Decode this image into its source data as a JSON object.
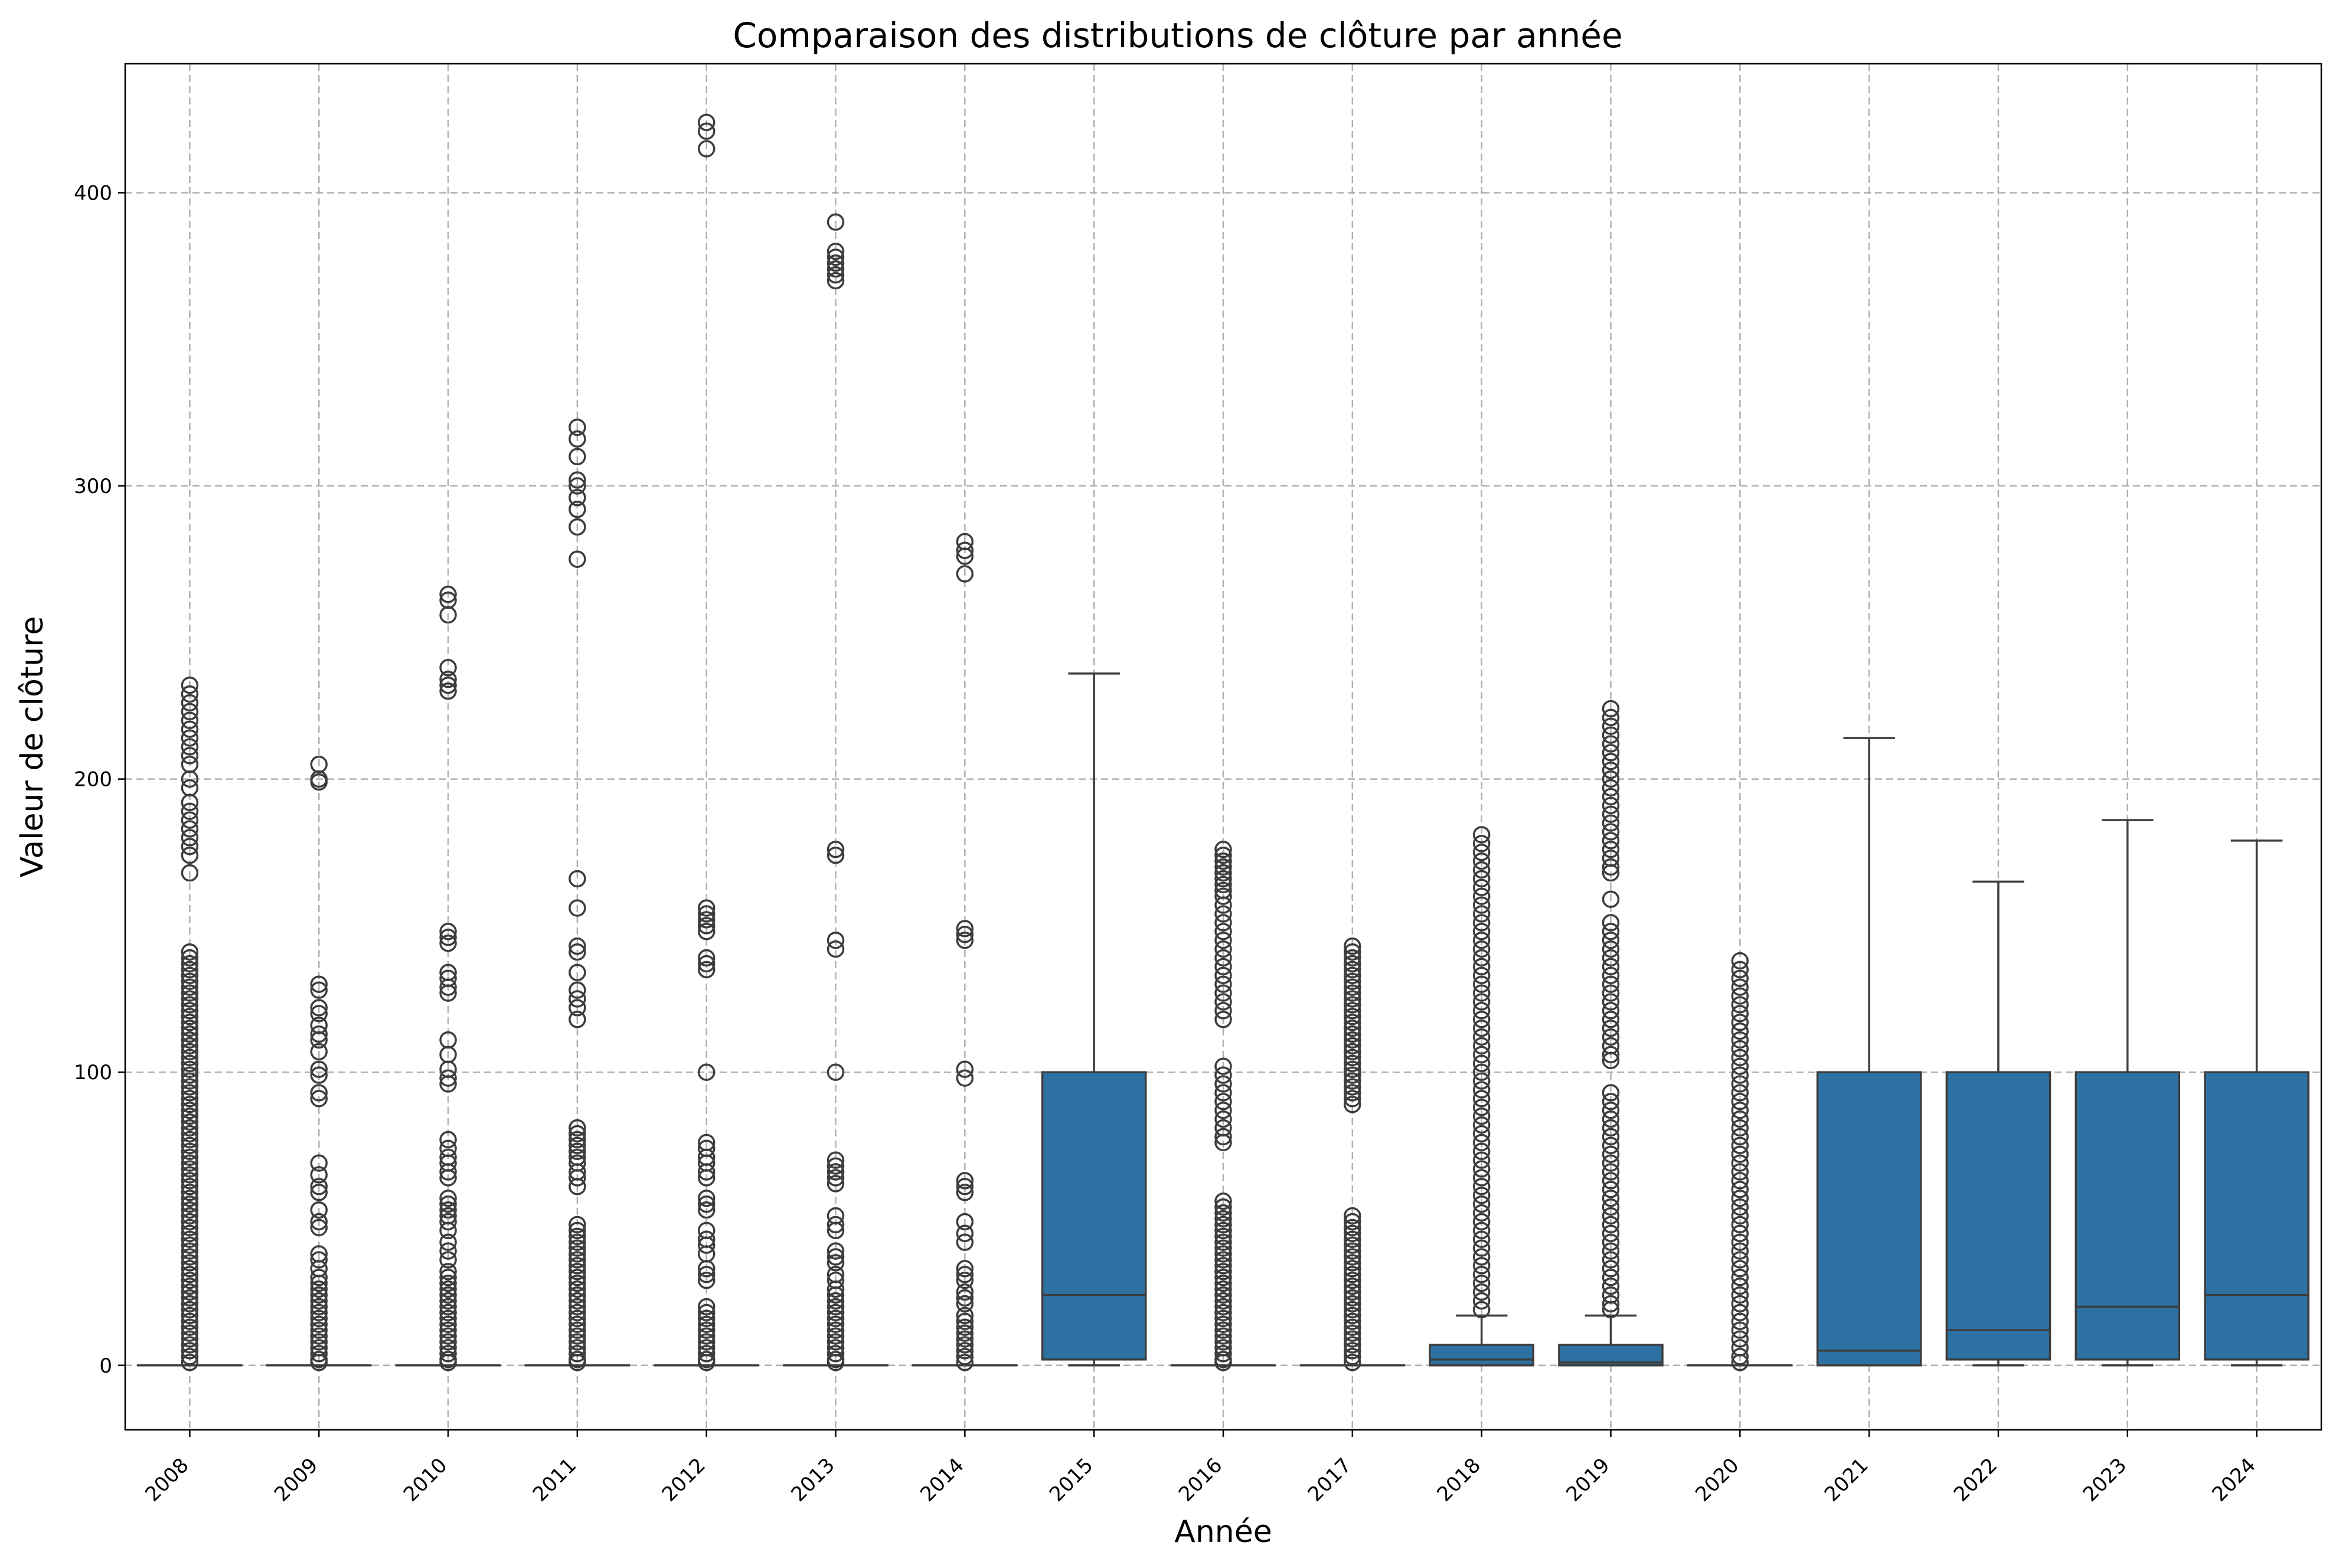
{
  "chart_data": {
    "type": "box",
    "title": "Comparaison des distributions de clôture par année",
    "xlabel": "Année",
    "ylabel": "Valeur de clôture",
    "ylim": [
      -22,
      444
    ],
    "yticks": [
      0,
      100,
      200,
      300,
      400
    ],
    "grid": true,
    "box_color": "#2e72a3",
    "line_color": "#3d3d3d",
    "categories": [
      "2008",
      "2009",
      "2010",
      "2011",
      "2012",
      "2013",
      "2014",
      "2015",
      "2016",
      "2017",
      "2018",
      "2019",
      "2020",
      "2021",
      "2022",
      "2023",
      "2024"
    ],
    "boxes": [
      {
        "year": "2008",
        "q1": 0,
        "median": 0,
        "q3": 0,
        "whislo": 0,
        "whishi": 0,
        "fliers": [
          232,
          229,
          226,
          223,
          220,
          217,
          214,
          211,
          208,
          205,
          200,
          197,
          192,
          189,
          186,
          183,
          180,
          177,
          174,
          168,
          141,
          139,
          137,
          135,
          133,
          131,
          129,
          127,
          125,
          123,
          121,
          119,
          117,
          115,
          113,
          111,
          109,
          107,
          105,
          103,
          101,
          99,
          97,
          95,
          93,
          91,
          89,
          87,
          85,
          83,
          81,
          79,
          77,
          75,
          73,
          71,
          69,
          67,
          65,
          63,
          61,
          59,
          57,
          55,
          53,
          51,
          49,
          47,
          45,
          43,
          41,
          39,
          37,
          35,
          33,
          31,
          29,
          27,
          25,
          23,
          21,
          19,
          17,
          15,
          13,
          11,
          9,
          7,
          5,
          3,
          1
        ]
      },
      {
        "year": "2009",
        "q1": 0,
        "median": 0,
        "q3": 0,
        "whislo": 0,
        "whishi": 0,
        "fliers": [
          205,
          200,
          199,
          130,
          128,
          122,
          120,
          116,
          113,
          111,
          107,
          101,
          99,
          93,
          91,
          69,
          65,
          61,
          59,
          53,
          49,
          47,
          38,
          36,
          33,
          30,
          28,
          26,
          24,
          22,
          20,
          18,
          16,
          14,
          12,
          10,
          8,
          6,
          4,
          2,
          1
        ]
      },
      {
        "year": "2010",
        "q1": 0,
        "median": 0,
        "q3": 0,
        "whislo": 0,
        "whishi": 0,
        "fliers": [
          263,
          261,
          256,
          238,
          234,
          232,
          230,
          148,
          146,
          144,
          134,
          132,
          129,
          127,
          111,
          106,
          101,
          98,
          96,
          77,
          74,
          71,
          69,
          66,
          64,
          57,
          55,
          53,
          51,
          49,
          46,
          42,
          39,
          36,
          32,
          30,
          28,
          26,
          24,
          22,
          20,
          18,
          16,
          14,
          12,
          10,
          8,
          6,
          4,
          2,
          1
        ]
      },
      {
        "year": "2011",
        "q1": 0,
        "median": 0,
        "q3": 0,
        "whislo": 0,
        "whishi": 0,
        "fliers": [
          320,
          316,
          310,
          302,
          300,
          296,
          292,
          286,
          275,
          166,
          156,
          143,
          141,
          134,
          128,
          125,
          122,
          118,
          81,
          79,
          77,
          75,
          73,
          71,
          69,
          66,
          64,
          61,
          48,
          46,
          44,
          42,
          40,
          38,
          36,
          34,
          32,
          30,
          28,
          26,
          24,
          22,
          20,
          18,
          16,
          14,
          12,
          10,
          8,
          6,
          4,
          2,
          1
        ]
      },
      {
        "year": "2012",
        "q1": 0,
        "median": 0,
        "q3": 0,
        "whislo": 0,
        "whishi": 0,
        "fliers": [
          424,
          421,
          415,
          156,
          154,
          152,
          150,
          148,
          139,
          137,
          135,
          100,
          76,
          74,
          71,
          69,
          66,
          64,
          57,
          55,
          53,
          46,
          43,
          41,
          38,
          33,
          31,
          29,
          20,
          18,
          16,
          14,
          12,
          10,
          8,
          6,
          4,
          2,
          1
        ]
      },
      {
        "year": "2013",
        "q1": 0,
        "median": 0,
        "q3": 0,
        "whislo": 0,
        "whishi": 0,
        "fliers": [
          390,
          380,
          378,
          376,
          374,
          372,
          370,
          176,
          174,
          145,
          142,
          100,
          70,
          68,
          66,
          64,
          62,
          51,
          48,
          46,
          39,
          37,
          35,
          31,
          29,
          26,
          24,
          22,
          20,
          18,
          16,
          14,
          12,
          10,
          8,
          6,
          4,
          2,
          1
        ]
      },
      {
        "year": "2014",
        "q1": 0,
        "median": 0,
        "q3": 0,
        "whislo": 0,
        "whishi": 0,
        "fliers": [
          281,
          278,
          276,
          270,
          149,
          147,
          145,
          101,
          98,
          63,
          61,
          59,
          49,
          45,
          42,
          33,
          31,
          29,
          25,
          23,
          21,
          17,
          15,
          13,
          11,
          9,
          7,
          5,
          3,
          1
        ]
      },
      {
        "year": "2015",
        "q1": 2,
        "median": 24,
        "q3": 100,
        "whislo": 0,
        "whishi": 236,
        "fliers": []
      },
      {
        "year": "2016",
        "q1": 0,
        "median": 0,
        "q3": 0,
        "whislo": 0,
        "whishi": 0,
        "fliers": [
          176,
          174,
          172,
          170,
          168,
          166,
          164,
          162,
          160,
          157,
          154,
          151,
          148,
          145,
          142,
          139,
          136,
          133,
          130,
          127,
          124,
          121,
          118,
          102,
          99,
          96,
          93,
          90,
          87,
          84,
          81,
          78,
          76,
          56,
          54,
          52,
          50,
          48,
          46,
          44,
          42,
          40,
          38,
          36,
          34,
          32,
          30,
          28,
          26,
          24,
          22,
          20,
          18,
          16,
          14,
          12,
          10,
          8,
          6,
          4,
          2,
          1
        ]
      },
      {
        "year": "2017",
        "q1": 0,
        "median": 0,
        "q3": 0,
        "whislo": 0,
        "whishi": 0,
        "fliers": [
          143,
          141,
          139,
          137,
          135,
          133,
          131,
          129,
          127,
          125,
          123,
          121,
          119,
          117,
          115,
          113,
          111,
          109,
          107,
          105,
          103,
          101,
          99,
          97,
          95,
          93,
          91,
          89,
          51,
          49,
          47,
          45,
          43,
          41,
          39,
          37,
          35,
          33,
          31,
          29,
          27,
          25,
          23,
          21,
          19,
          17,
          15,
          13,
          11,
          9,
          7,
          5,
          3,
          1
        ]
      },
      {
        "year": "2018",
        "q1": 0,
        "median": 2,
        "q3": 7,
        "whislo": 0,
        "whishi": 17,
        "fliers": [
          181,
          178,
          175,
          172,
          169,
          166,
          163,
          160,
          157,
          154,
          151,
          148,
          145,
          142,
          139,
          136,
          133,
          130,
          127,
          124,
          121,
          118,
          115,
          112,
          109,
          106,
          103,
          100,
          97,
          94,
          91,
          88,
          85,
          82,
          79,
          76,
          73,
          70,
          67,
          64,
          61,
          58,
          55,
          52,
          49,
          46,
          43,
          40,
          37,
          34,
          31,
          28,
          25,
          22,
          19
        ]
      },
      {
        "year": "2019",
        "q1": 0,
        "median": 1,
        "q3": 7,
        "whislo": 0,
        "whishi": 17,
        "fliers": [
          224,
          221,
          218,
          215,
          212,
          209,
          206,
          203,
          200,
          197,
          194,
          191,
          188,
          185,
          182,
          179,
          176,
          173,
          170,
          168,
          159,
          151,
          148,
          145,
          142,
          139,
          136,
          133,
          130,
          127,
          124,
          121,
          118,
          115,
          112,
          109,
          106,
          104,
          93,
          90,
          87,
          84,
          81,
          78,
          75,
          72,
          69,
          66,
          63,
          60,
          57,
          54,
          51,
          48,
          45,
          42,
          39,
          36,
          33,
          30,
          27,
          24,
          21,
          19
        ]
      },
      {
        "year": "2020",
        "q1": 0,
        "median": 0,
        "q3": 0,
        "whislo": 0,
        "whishi": 0,
        "fliers": [
          138,
          135,
          132,
          129,
          126,
          123,
          120,
          117,
          114,
          111,
          108,
          105,
          102,
          99,
          96,
          93,
          90,
          87,
          84,
          81,
          78,
          75,
          72,
          69,
          66,
          63,
          60,
          57,
          54,
          51,
          48,
          45,
          42,
          39,
          36,
          33,
          30,
          27,
          24,
          21,
          18,
          15,
          12,
          9,
          6,
          3,
          1
        ]
      },
      {
        "year": "2021",
        "q1": 0,
        "median": 5,
        "q3": 100,
        "whislo": 0,
        "whishi": 214,
        "fliers": []
      },
      {
        "year": "2022",
        "q1": 2,
        "median": 12,
        "q3": 100,
        "whislo": 0,
        "whishi": 165,
        "fliers": []
      },
      {
        "year": "2023",
        "q1": 2,
        "median": 20,
        "q3": 100,
        "whislo": 0,
        "whishi": 186,
        "fliers": []
      },
      {
        "year": "2024",
        "q1": 2,
        "median": 24,
        "q3": 100,
        "whislo": 0,
        "whishi": 179,
        "fliers": []
      }
    ]
  }
}
